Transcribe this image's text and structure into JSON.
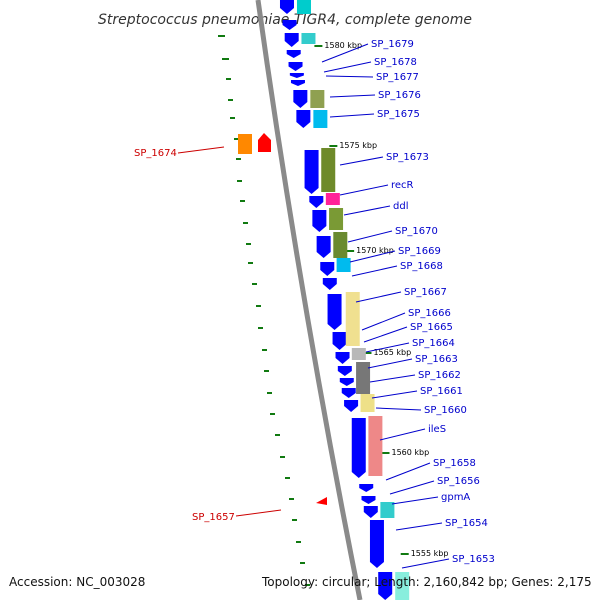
{
  "title": "Streptococcus pneumoniae TIGR4, complete genome",
  "footer": {
    "accession": "Accession: NC_003028",
    "summary": "Topology: circular; Length: 2,160,842 bp; Genes: 2,175"
  },
  "colors": {
    "backbone": "#888888",
    "cds": "#0000ff",
    "label_blue": "#0000cc",
    "label_red": "#cc0000",
    "tick": "#006600"
  },
  "scale_labels": [
    "1580 kbp",
    "1575 kbp",
    "1570 kbp",
    "1565 kbp",
    "1560 kbp",
    "1555 kbp"
  ],
  "genes_right": [
    {
      "label": "SP_1679"
    },
    {
      "label": "SP_1678"
    },
    {
      "label": "SP_1677"
    },
    {
      "label": "SP_1676"
    },
    {
      "label": "SP_1675"
    },
    {
      "label": "SP_1673"
    },
    {
      "label": "recR"
    },
    {
      "label": "ddl"
    },
    {
      "label": "SP_1670"
    },
    {
      "label": "SP_1669"
    },
    {
      "label": "SP_1668"
    },
    {
      "label": "SP_1667"
    },
    {
      "label": "SP_1666"
    },
    {
      "label": "SP_1665"
    },
    {
      "label": "SP_1664"
    },
    {
      "label": "SP_1663"
    },
    {
      "label": "SP_1662"
    },
    {
      "label": "SP_1661"
    },
    {
      "label": "SP_1660"
    },
    {
      "label": "ileS"
    },
    {
      "label": "SP_1658"
    },
    {
      "label": "SP_1656"
    },
    {
      "label": "gpmA"
    },
    {
      "label": "SP_1654"
    },
    {
      "label": "SP_1653"
    }
  ],
  "genes_left": [
    {
      "label": "SP_1674"
    },
    {
      "label": "SP_1657"
    }
  ]
}
